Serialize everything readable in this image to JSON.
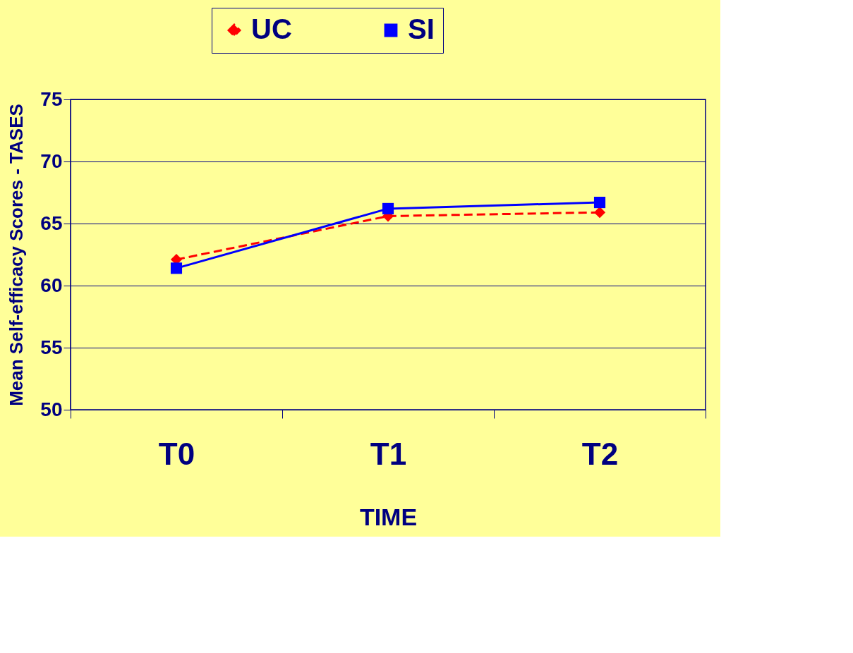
{
  "chart_data": {
    "type": "line",
    "xlabel": "TIME",
    "ylabel": "Mean Self-efficacy Scores - TASES",
    "categories": [
      "T0",
      "T1",
      "T2"
    ],
    "series": [
      {
        "name": "UC",
        "color": "#ff0000",
        "values": [
          62.1,
          65.6,
          65.9
        ],
        "marker": "diamond",
        "line_style": "dashed"
      },
      {
        "name": "SI",
        "color": "#0000ff",
        "values": [
          61.4,
          66.2,
          66.7
        ],
        "marker": "square",
        "line_style": "solid"
      }
    ],
    "ylim": [
      50,
      75
    ],
    "yticks": [
      50,
      55,
      60,
      65,
      70,
      75
    ],
    "grid": "y",
    "legend": "top"
  }
}
